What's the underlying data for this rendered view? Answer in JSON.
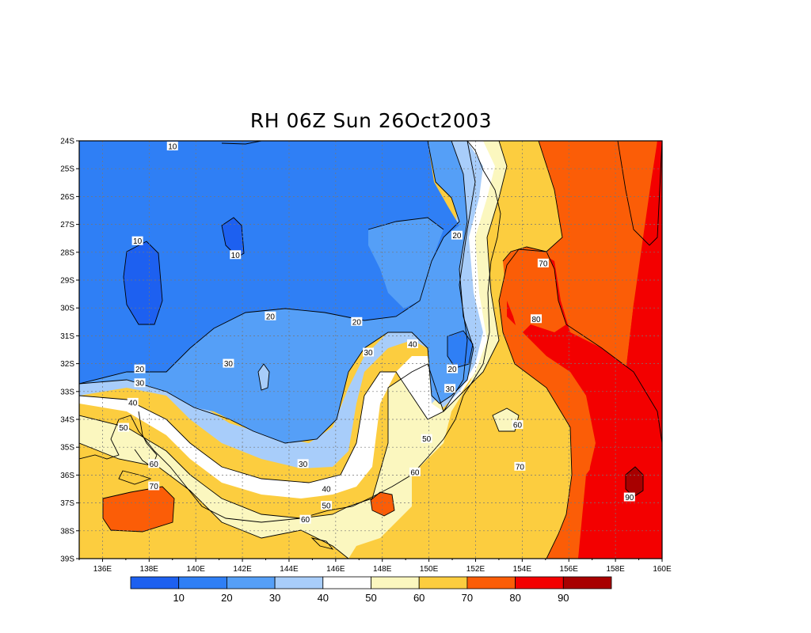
{
  "title": "RH 06Z Sun 26Oct2003",
  "chart_data": {
    "type": "heatmap",
    "title": "RH 06Z Sun 26Oct2003",
    "variable": "RH",
    "xlim": [
      135,
      160
    ],
    "ylim": [
      -39,
      -24
    ],
    "x_ticks": [
      "136E",
      "138E",
      "140E",
      "142E",
      "144E",
      "146E",
      "148E",
      "150E",
      "152E",
      "154E",
      "156E",
      "158E",
      "160E"
    ],
    "y_ticks": [
      "24S",
      "25S",
      "26S",
      "27S",
      "28S",
      "29S",
      "30S",
      "31S",
      "32S",
      "33S",
      "34S",
      "35S",
      "36S",
      "37S",
      "38S",
      "39S"
    ],
    "grid": true,
    "colorbar": {
      "colors": [
        "#1d60f0",
        "#2f7ff5",
        "#559ff7",
        "#a8cdfa",
        "#ffffff",
        "#fbf7bf",
        "#fccd3f",
        "#fb5d07",
        "#f30000",
        "#a80000"
      ],
      "labels": [
        "10",
        "20",
        "30",
        "40",
        "50",
        "60",
        "70",
        "80",
        "90"
      ]
    },
    "contour_labels": [
      {
        "text": "10",
        "lon": 139.0,
        "lat": -24.2
      },
      {
        "text": "10",
        "lon": 137.5,
        "lat": -27.6
      },
      {
        "text": "10",
        "lon": 141.7,
        "lat": -28.1
      },
      {
        "text": "20",
        "lon": 151.2,
        "lat": -27.4
      },
      {
        "text": "20",
        "lon": 143.2,
        "lat": -30.3
      },
      {
        "text": "20",
        "lon": 146.9,
        "lat": -30.5
      },
      {
        "text": "20",
        "lon": 137.6,
        "lat": -32.2
      },
      {
        "text": "20",
        "lon": 151.0,
        "lat": -32.2
      },
      {
        "text": "30",
        "lon": 141.4,
        "lat": -32.0
      },
      {
        "text": "30",
        "lon": 137.6,
        "lat": -32.7
      },
      {
        "text": "30",
        "lon": 147.4,
        "lat": -31.6
      },
      {
        "text": "30",
        "lon": 150.9,
        "lat": -32.9
      },
      {
        "text": "30",
        "lon": 144.6,
        "lat": -35.6
      },
      {
        "text": "40",
        "lon": 149.3,
        "lat": -31.3
      },
      {
        "text": "40",
        "lon": 137.3,
        "lat": -33.4
      },
      {
        "text": "40",
        "lon": 145.6,
        "lat": -36.5
      },
      {
        "text": "50",
        "lon": 136.9,
        "lat": -34.3
      },
      {
        "text": "50",
        "lon": 149.9,
        "lat": -34.7
      },
      {
        "text": "50",
        "lon": 145.6,
        "lat": -37.1
      },
      {
        "text": "60",
        "lon": 138.2,
        "lat": -35.6
      },
      {
        "text": "60",
        "lon": 149.4,
        "lat": -35.9
      },
      {
        "text": "60",
        "lon": 144.7,
        "lat": -37.6
      },
      {
        "text": "60",
        "lon": 153.8,
        "lat": -34.2
      },
      {
        "text": "70",
        "lon": 138.2,
        "lat": -36.4
      },
      {
        "text": "70",
        "lon": 154.9,
        "lat": -28.4
      },
      {
        "text": "70",
        "lon": 153.9,
        "lat": -35.7
      },
      {
        "text": "80",
        "lon": 154.6,
        "lat": -30.4
      },
      {
        "text": "90",
        "lon": 158.6,
        "lat": -36.8
      }
    ]
  }
}
